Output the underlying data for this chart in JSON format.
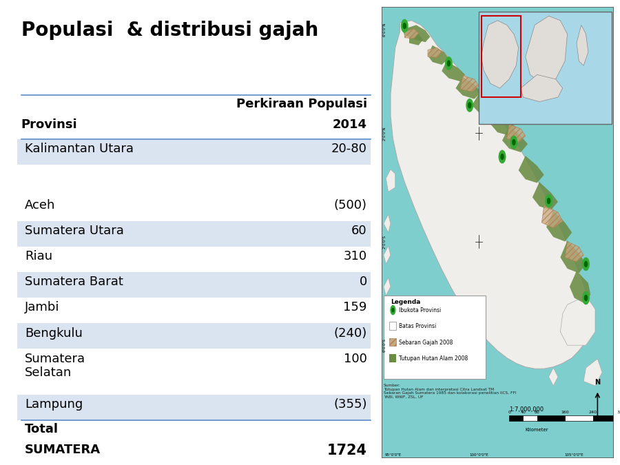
{
  "title": "Populasi  & distribusi gajah",
  "title_fontsize": 20,
  "title_fontweight": "bold",
  "header_col1": "Provinsi",
  "header_col2_line1": "Perkiraan Populasi",
  "header_col2_line2": "2014",
  "rows": [
    {
      "province": "Kalimantan Utara",
      "value": "20-80",
      "shaded": true,
      "empty_before": false
    },
    {
      "province": "",
      "value": "",
      "shaded": false,
      "empty_before": false
    },
    {
      "province": "",
      "value": "",
      "shaded": false,
      "empty_before": false
    },
    {
      "province": "Aceh",
      "value": "(500)",
      "shaded": false,
      "empty_before": false
    },
    {
      "province": "Sumatera Utara",
      "value": "60",
      "shaded": true,
      "empty_before": false
    },
    {
      "province": "Riau",
      "value": "310",
      "shaded": false,
      "empty_before": false
    },
    {
      "province": "Sumatera Barat",
      "value": "0",
      "shaded": true,
      "empty_before": false
    },
    {
      "province": "Jambi",
      "value": "159",
      "shaded": false,
      "empty_before": false
    },
    {
      "province": "Bengkulu",
      "value": "(240)",
      "shaded": true,
      "empty_before": false
    },
    {
      "province": "Sumatera\nSelatan",
      "value": "100",
      "shaded": false,
      "empty_before": false
    },
    {
      "province": "Lampung",
      "value": "(355)",
      "shaded": true,
      "empty_before": false
    }
  ],
  "total_label1": "Total",
  "total_label2": "SUMATERA",
  "total_value": "1724",
  "shaded_color": "#d9e4f0",
  "unshaded_color": "#ffffff",
  "header_line_color": "#5b8bc8",
  "text_color": "#000000",
  "background_color": "#ffffff",
  "table_fontsize": 13,
  "header_fontsize": 13,
  "sea_color": "#7ecece",
  "island_color": "#f0eeea",
  "forest_color": "#6b8c45",
  "elephant_color": "#c8a882",
  "elephant_hatch_color": "#b08050",
  "city_color": "#33aa33",
  "city_inner_color": "#006600",
  "inset_sea_color": "#a8d8e8",
  "inset_land_color": "#e0ddd8"
}
